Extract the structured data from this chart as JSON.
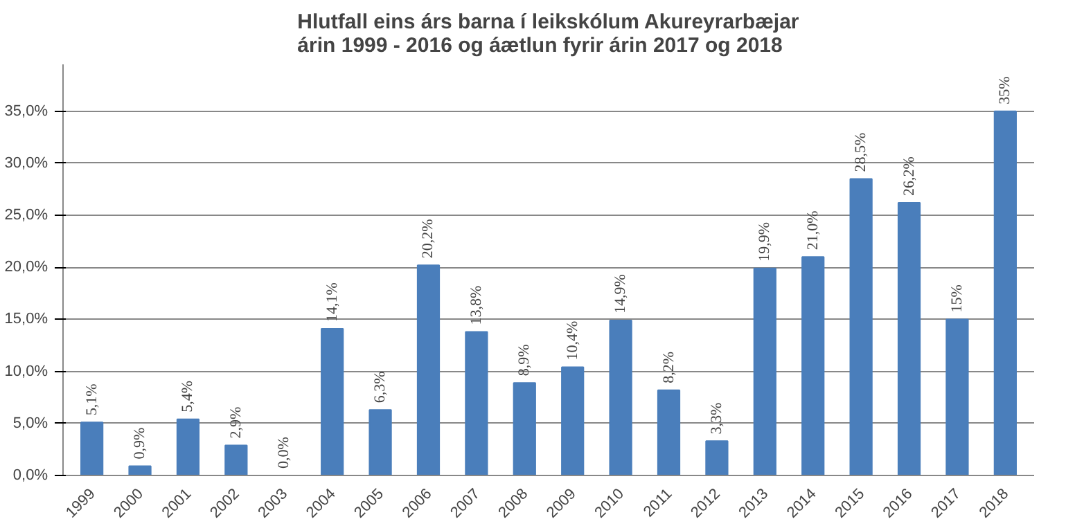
{
  "chart_data": {
    "type": "bar",
    "title": "Hlutfall eins árs barna í leikskólum Akureyrarbæjar\nárin 1999 - 2016 og áætlun fyrir árin 2017 og 2018",
    "categories": [
      "1999",
      "2000",
      "2001",
      "2002",
      "2003",
      "2004",
      "2005",
      "2006",
      "2007",
      "2008",
      "2009",
      "2010",
      "2011",
      "2012",
      "2013",
      "2014",
      "2015",
      "2016",
      "2017",
      "2018"
    ],
    "values": [
      5.1,
      0.9,
      5.4,
      2.9,
      0.0,
      14.1,
      6.3,
      20.2,
      13.8,
      8.9,
      10.4,
      14.9,
      8.2,
      3.3,
      19.9,
      21.0,
      28.5,
      26.2,
      15,
      35
    ],
    "value_labels": [
      "5,1%",
      "0,9%",
      "5,4%",
      "2,9%",
      "0,0%",
      "14,1%",
      "6,3%",
      "20,2%",
      "13,8%",
      "8,9%",
      "10,4%",
      "14,9%",
      "8,2%",
      "3,3%",
      "19,9%",
      "21,0%",
      "28,5%",
      "26,2%",
      "15%",
      "35%"
    ],
    "color": "#4a7ebb",
    "ylim": [
      0,
      39.5
    ],
    "yticks": [
      {
        "value": 0,
        "label": "0,0%"
      },
      {
        "value": 5,
        "label": "5,0%"
      },
      {
        "value": 10,
        "label": "10,0%"
      },
      {
        "value": 15,
        "label": "15,0%"
      },
      {
        "value": 20,
        "label": "20,0%"
      },
      {
        "value": 25,
        "label": "25,0%"
      },
      {
        "value": 30,
        "label": "30,0%"
      },
      {
        "value": 35,
        "label": "35,0%"
      }
    ],
    "grid": "y"
  }
}
